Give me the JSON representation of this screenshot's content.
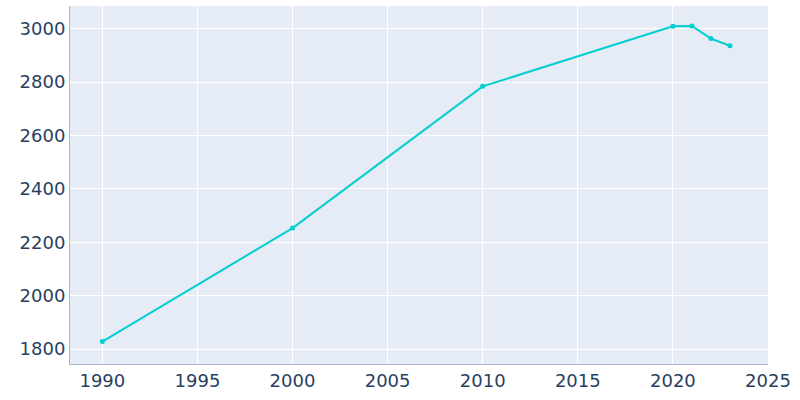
{
  "chart_data": {
    "type": "line",
    "x": [
      1990,
      2000,
      2010,
      2020,
      2021,
      2022,
      2023
    ],
    "values": [
      1828,
      2253,
      2784,
      3009,
      3010,
      2963,
      2936
    ],
    "color": "#00ced1",
    "marker": "circle",
    "xlim": [
      1988.3,
      2025
    ],
    "xticks": [
      1990,
      1995,
      2000,
      2005,
      2010,
      2015,
      2020,
      2025
    ],
    "ylim": [
      1744,
      3085
    ],
    "yticks": [
      1800,
      2000,
      2200,
      2400,
      2600,
      2800,
      3000
    ],
    "grid": true
  }
}
